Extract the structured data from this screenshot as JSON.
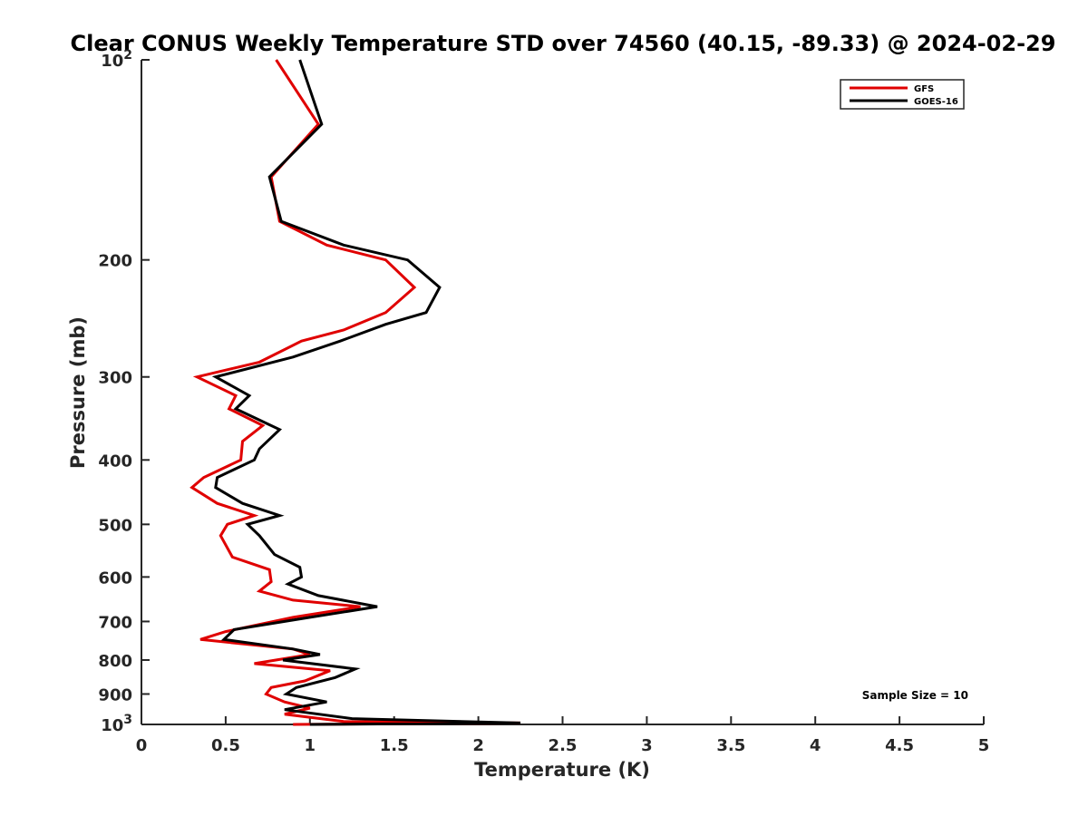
{
  "chart_data": {
    "type": "line",
    "title": "Clear CONUS Weekly Temperature STD over 74560 (40.15, -89.33) @ 2024-02-29",
    "xlabel": "Temperature (K)",
    "ylabel": "Pressure (mb)",
    "xlim": [
      0,
      5
    ],
    "ylim": [
      100,
      1000
    ],
    "y_scale": "log",
    "y_reversed": true,
    "x_ticks": [
      "0",
      "0.5",
      "1",
      "1.5",
      "2",
      "2.5",
      "3",
      "3.5",
      "4",
      "4.5",
      "5"
    ],
    "y_ticks": [
      {
        "value": 100,
        "base": "10",
        "exp": "2"
      },
      {
        "value": 200,
        "label": "200"
      },
      {
        "value": 300,
        "label": "300"
      },
      {
        "value": 400,
        "label": "400"
      },
      {
        "value": 500,
        "label": "500"
      },
      {
        "value": 600,
        "label": "600"
      },
      {
        "value": 700,
        "label": "700"
      },
      {
        "value": 800,
        "label": "800"
      },
      {
        "value": 900,
        "label": "900"
      },
      {
        "value": 1000,
        "base": "10",
        "exp": "3"
      }
    ],
    "grid": false,
    "legend_position": "top-right",
    "annotation": "Sample Size = 10",
    "series": [
      {
        "name": "GFS",
        "color": "#e00000",
        "points": [
          [
            0.8,
            100
          ],
          [
            1.05,
            125
          ],
          [
            0.77,
            150
          ],
          [
            0.82,
            175
          ],
          [
            1.1,
            190
          ],
          [
            1.45,
            200
          ],
          [
            1.62,
            220
          ],
          [
            1.45,
            240
          ],
          [
            1.2,
            255
          ],
          [
            0.95,
            265
          ],
          [
            0.7,
            285
          ],
          [
            0.33,
            300
          ],
          [
            0.56,
            320
          ],
          [
            0.52,
            335
          ],
          [
            0.72,
            355
          ],
          [
            0.6,
            375
          ],
          [
            0.59,
            400
          ],
          [
            0.37,
            425
          ],
          [
            0.3,
            440
          ],
          [
            0.45,
            465
          ],
          [
            0.67,
            485
          ],
          [
            0.51,
            500
          ],
          [
            0.47,
            520
          ],
          [
            0.54,
            560
          ],
          [
            0.76,
            585
          ],
          [
            0.77,
            610
          ],
          [
            0.7,
            630
          ],
          [
            0.9,
            650
          ],
          [
            1.3,
            665
          ],
          [
            0.9,
            690
          ],
          [
            0.5,
            725
          ],
          [
            0.35,
            745
          ],
          [
            0.9,
            770
          ],
          [
            1.0,
            785
          ],
          [
            0.67,
            810
          ],
          [
            1.12,
            830
          ],
          [
            0.97,
            860
          ],
          [
            0.77,
            880
          ],
          [
            0.74,
            900
          ],
          [
            0.85,
            925
          ],
          [
            1.0,
            945
          ],
          [
            0.85,
            965
          ],
          [
            1.2,
            990
          ],
          [
            2.25,
            995
          ],
          [
            0.9,
            1000
          ]
        ]
      },
      {
        "name": "GOES-16",
        "color": "#000000",
        "points": [
          [
            0.94,
            100
          ],
          [
            1.07,
            125
          ],
          [
            0.76,
            150
          ],
          [
            0.83,
            175
          ],
          [
            1.2,
            190
          ],
          [
            1.58,
            200
          ],
          [
            1.77,
            220
          ],
          [
            1.69,
            240
          ],
          [
            1.45,
            250
          ],
          [
            1.18,
            265
          ],
          [
            0.9,
            280
          ],
          [
            0.44,
            300
          ],
          [
            0.64,
            320
          ],
          [
            0.56,
            335
          ],
          [
            0.82,
            360
          ],
          [
            0.7,
            385
          ],
          [
            0.67,
            400
          ],
          [
            0.45,
            425
          ],
          [
            0.44,
            440
          ],
          [
            0.6,
            465
          ],
          [
            0.82,
            485
          ],
          [
            0.63,
            500
          ],
          [
            0.7,
            520
          ],
          [
            0.79,
            555
          ],
          [
            0.94,
            580
          ],
          [
            0.95,
            600
          ],
          [
            0.87,
            615
          ],
          [
            1.05,
            640
          ],
          [
            1.4,
            665
          ],
          [
            1.0,
            690
          ],
          [
            0.55,
            720
          ],
          [
            0.49,
            745
          ],
          [
            0.9,
            770
          ],
          [
            1.06,
            785
          ],
          [
            0.84,
            800
          ],
          [
            1.27,
            825
          ],
          [
            1.15,
            850
          ],
          [
            0.92,
            880
          ],
          [
            0.86,
            900
          ],
          [
            1.1,
            925
          ],
          [
            0.85,
            950
          ],
          [
            1.25,
            980
          ],
          [
            2.25,
            995
          ],
          [
            1.0,
            1000
          ]
        ]
      }
    ]
  }
}
